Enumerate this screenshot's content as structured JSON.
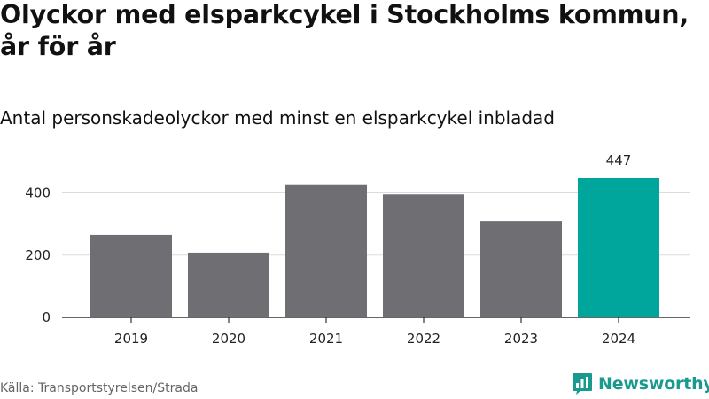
{
  "title": "Olyckor med elsparkcykel i Stockholms kommun, år för år",
  "subtitle": "Antal personskadeolyckor med minst en elsparkcykel inbladad",
  "source": "Källa: Transportstyrelsen/Strada",
  "brand": {
    "name": "Newsworthy",
    "logo_icon": "bar-chart-speech-bubble-icon",
    "color": "#1a9a8e"
  },
  "chart_data": {
    "type": "bar",
    "categories": [
      "2019",
      "2020",
      "2021",
      "2022",
      "2023",
      "2024"
    ],
    "values": [
      265,
      208,
      425,
      395,
      310,
      447
    ],
    "ylim": [
      0,
      447
    ],
    "yticks": [
      0,
      200,
      400
    ],
    "grid": true,
    "data_labels": [
      {
        "category": "2024",
        "text": "447"
      }
    ],
    "colors": {
      "default": "#6f6e73",
      "highlight": "#00a59b"
    },
    "highlight_category": "2024"
  }
}
